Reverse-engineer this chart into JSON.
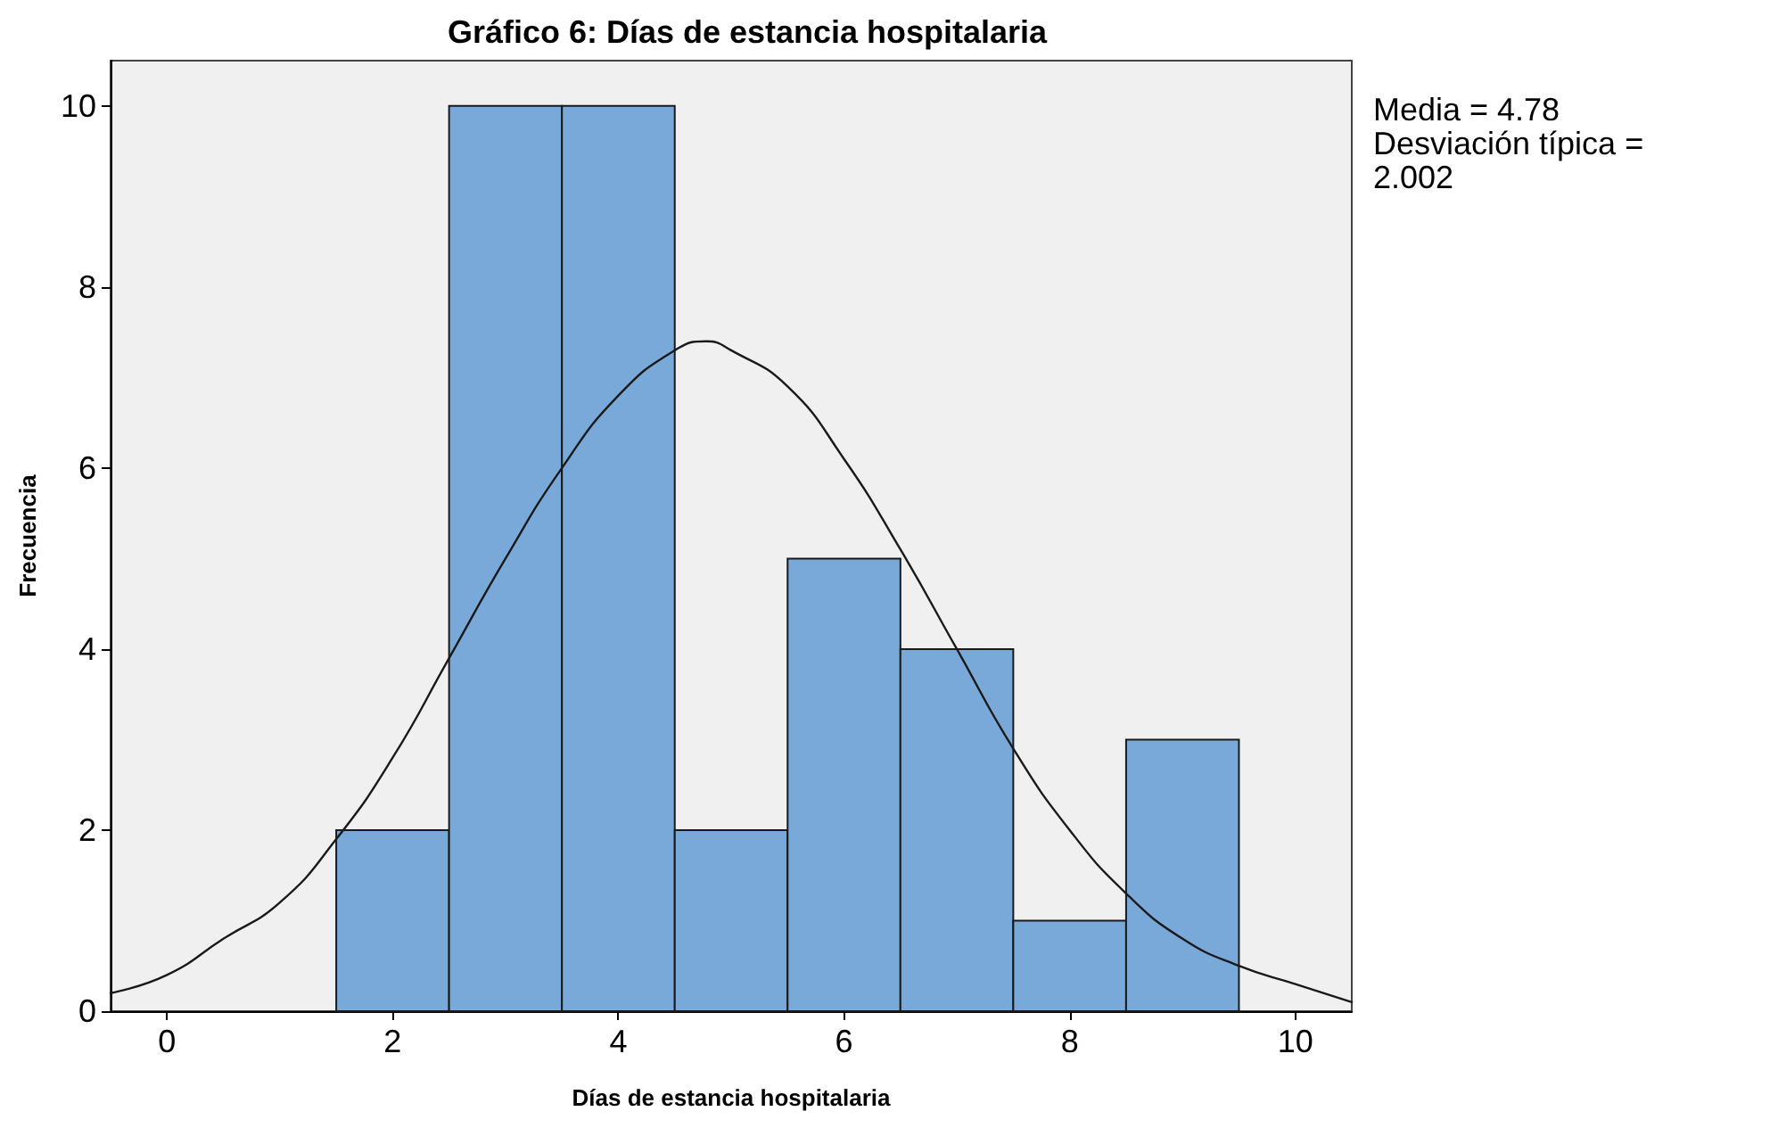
{
  "chart_data": {
    "type": "histogram",
    "title": "Gráfico 6: Días de estancia hospitalaria",
    "xlabel": "Días de estancia hospitalaria",
    "ylabel": "Frecuencia",
    "bins": [
      1.5,
      2.5,
      3.5,
      4.5,
      5.5,
      6.5,
      7.5,
      8.5,
      9.5
    ],
    "values": [
      2,
      10,
      10,
      2,
      5,
      4,
      1,
      3
    ],
    "color": "#79a9d8",
    "series": [
      {
        "type": "line",
        "color": "#1a1a1a",
        "x": [
          -0.5,
          0,
          0.5,
          1,
          1.5,
          2,
          2.5,
          3,
          3.5,
          4,
          4.5,
          4.78,
          5,
          5.5,
          6,
          6.5,
          7,
          7.5,
          8,
          8.5,
          9,
          9.5,
          10,
          10.5
        ],
        "values": [
          0.2,
          0.4,
          0.8,
          1.2,
          1.9,
          2.8,
          3.9,
          5.0,
          6.0,
          6.8,
          7.3,
          7.4,
          7.3,
          6.9,
          6.1,
          5.1,
          4.0,
          2.9,
          2.0,
          1.3,
          0.8,
          0.5,
          0.3,
          0.1
        ]
      }
    ],
    "xlim": [
      -0.5,
      10.5
    ],
    "xticks": [
      0,
      2,
      4,
      6,
      8,
      10
    ],
    "ylim": [
      0,
      10.5
    ],
    "yticks": [
      0,
      2,
      4,
      6,
      8,
      10
    ],
    "annotations": [
      "Media = 4.78",
      "Desviación típica =",
      "2.002"
    ],
    "grid": false,
    "marker": "none",
    "line_style": "solid"
  }
}
